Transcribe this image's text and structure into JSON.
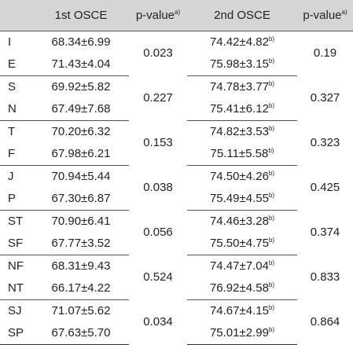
{
  "header": {
    "col_first": "1st OSCE",
    "col_p1": "p-value",
    "col_p1_sup": "a)",
    "col_second": "2nd OSCE",
    "col_p2": "p-value",
    "col_p2_sup": "a)"
  },
  "groups": [
    {
      "rows": [
        {
          "label": "I",
          "first": "68.34±6.99",
          "second": "74.42±4.82",
          "second_sup": "b)"
        },
        {
          "label": "E",
          "first": "71.43±4.04",
          "second": "75.98±3.15",
          "second_sup": "b)"
        }
      ],
      "p1": "0.023",
      "p2": "0.19"
    },
    {
      "rows": [
        {
          "label": "S",
          "first": "69.92±5.82",
          "second": "74.78±3.77",
          "second_sup": "b)"
        },
        {
          "label": "N",
          "first": "67.49±7.68",
          "second": "75.41±6.12",
          "second_sup": "b)"
        }
      ],
      "p1": "0.227",
      "p2": "0.327"
    },
    {
      "rows": [
        {
          "label": "T",
          "first": "70.20±6.32",
          "second": "74.82±3.53",
          "second_sup": "b)"
        },
        {
          "label": "F",
          "first": "67.98±6.21",
          "second": "75.11±5.58",
          "second_sup": "b)"
        }
      ],
      "p1": "0.153",
      "p2": "0.323"
    },
    {
      "rows": [
        {
          "label": "J",
          "first": "70.94±5.44",
          "second": "74.50±4.26",
          "second_sup": "b)"
        },
        {
          "label": "P",
          "first": "67.30±6.87",
          "second": "75.49±4.55",
          "second_sup": "b)"
        }
      ],
      "p1": "0.038",
      "p2": "0.425"
    },
    {
      "rows": [
        {
          "label": "ST",
          "first": "70.90±6.41",
          "second": "74.46±3.28",
          "second_sup": "b)"
        },
        {
          "label": "SF",
          "first": "67.77±3.52",
          "second": "75.50±4.75",
          "second_sup": "b)"
        }
      ],
      "p1": "0.056",
      "p2": "0.374"
    },
    {
      "rows": [
        {
          "label": "NF",
          "first": "68.31±9.43",
          "second": "74.47±7.04",
          "second_sup": "b)"
        },
        {
          "label": "NT",
          "first": "66.17±4.22",
          "second": "76.92±4.58",
          "second_sup": "b)"
        }
      ],
      "p1": "0.524",
      "p2": "0.833"
    },
    {
      "rows": [
        {
          "label": "SJ",
          "first": "71.07±5.62",
          "second": "74.67±4.15",
          "second_sup": "b)"
        },
        {
          "label": "SP",
          "first": "67.63±5.70",
          "second": "75.01±2.99",
          "second_sup": "b)"
        }
      ],
      "p1": "0.034",
      "p2": "0.864"
    }
  ]
}
